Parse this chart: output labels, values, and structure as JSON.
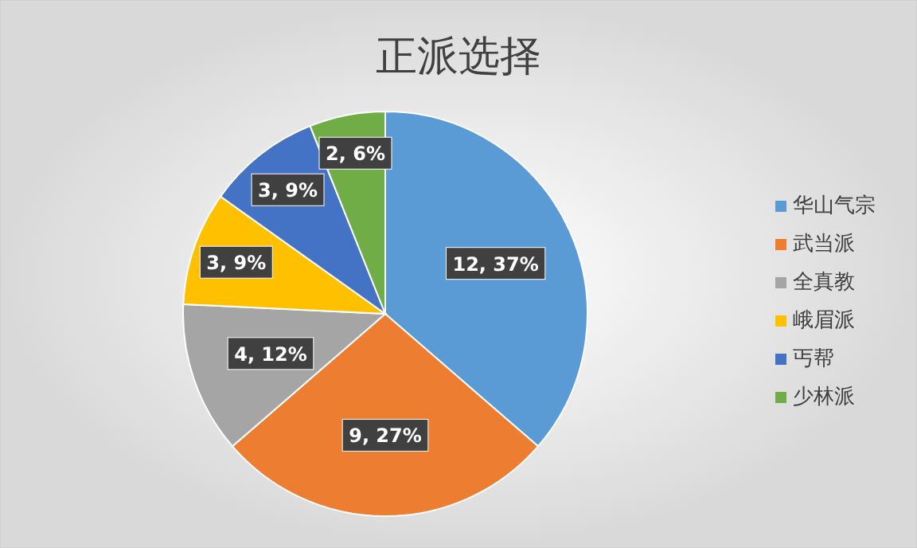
{
  "chart_data": {
    "type": "pie",
    "title": "正派选择",
    "categories": [
      "华山气宗",
      "武当派",
      "全真教",
      "峨眉派",
      "丐帮",
      "少林派"
    ],
    "values": [
      12,
      9,
      4,
      3,
      3,
      2
    ],
    "colors": [
      "#5b9bd5",
      "#ed7d31",
      "#a5a5a5",
      "#ffc000",
      "#4472c4",
      "#70ad47"
    ],
    "value_labels": [
      "12, 37%",
      "9, 27%",
      "4, 12%",
      "3, 9%",
      "3, 9%",
      "2, 6%"
    ],
    "legend": "right"
  }
}
